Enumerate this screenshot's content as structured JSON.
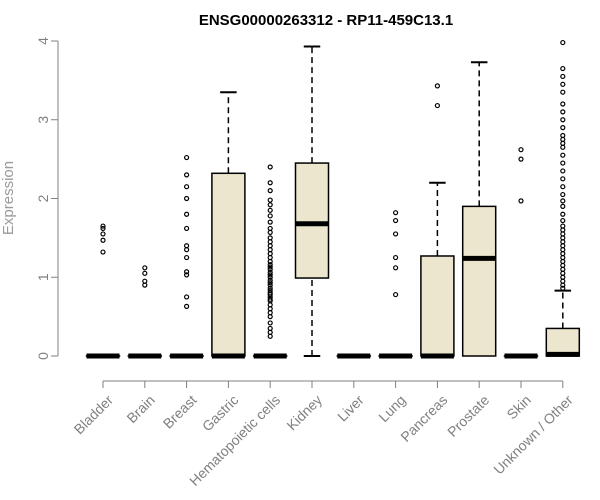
{
  "chart_data": {
    "type": "box",
    "title": "ENSG00000263312 - RP11-459C13.1",
    "ylabel": "Expression",
    "xlabel": "",
    "ylim": [
      0,
      4
    ],
    "yticks": [
      0,
      1,
      2,
      3,
      4
    ],
    "grid": false,
    "box_fill": "#ede6cf",
    "box_stroke": "#000000",
    "axis_color": "#808080",
    "categories": [
      "Bladder",
      "Brain",
      "Breast",
      "Gastric",
      "Hematopoietic cells",
      "Kidney",
      "Liver",
      "Lung",
      "Pancreas",
      "Prostate",
      "Skin",
      "Unknown / Other"
    ],
    "boxes": [
      {
        "min": 0,
        "q1": 0,
        "median": 0,
        "q3": 0,
        "max": 0,
        "outliers": [
          1.32,
          1.47,
          1.55,
          1.62,
          1.65
        ]
      },
      {
        "min": 0,
        "q1": 0,
        "median": 0,
        "q3": 0,
        "max": 0,
        "outliers": [
          0.9,
          0.95,
          1.05,
          1.12
        ]
      },
      {
        "min": 0,
        "q1": 0,
        "median": 0,
        "q3": 0,
        "max": 0,
        "outliers": [
          0.63,
          0.75,
          1.03,
          1.07,
          1.25,
          1.35,
          1.4,
          1.62,
          1.8,
          2.0,
          2.15,
          2.3,
          2.52
        ]
      },
      {
        "min": 0,
        "q1": 0,
        "median": 0,
        "q3": 2.32,
        "max": 3.35,
        "outliers": []
      },
      {
        "min": 0,
        "q1": 0,
        "median": 0,
        "q3": 0,
        "max": 0,
        "outliers": [
          0.25,
          0.3,
          0.35,
          0.42,
          0.5,
          0.55,
          0.6,
          0.65,
          0.7,
          0.72,
          0.75,
          0.78,
          0.8,
          0.83,
          0.86,
          0.9,
          0.93,
          0.96,
          1.0,
          1.03,
          1.06,
          1.1,
          1.13,
          1.16,
          1.2,
          1.25,
          1.3,
          1.35,
          1.4,
          1.45,
          1.5,
          1.57,
          1.62,
          1.7,
          1.78,
          1.85,
          1.92,
          1.98,
          2.1,
          2.2,
          2.4
        ]
      },
      {
        "min": 0,
        "q1": 0.99,
        "median": 1.68,
        "q3": 2.45,
        "max": 3.93,
        "outliers": []
      },
      {
        "min": 0,
        "q1": 0,
        "median": 0,
        "q3": 0,
        "max": 0,
        "outliers": []
      },
      {
        "min": 0,
        "q1": 0,
        "median": 0,
        "q3": 0,
        "max": 0,
        "outliers": [
          0.78,
          1.12,
          1.25,
          1.55,
          1.72,
          1.82
        ]
      },
      {
        "min": 0,
        "q1": 0,
        "median": 0,
        "q3": 1.27,
        "max": 2.2,
        "outliers": [
          3.18,
          3.43
        ]
      },
      {
        "min": 0,
        "q1": 0,
        "median": 1.24,
        "q3": 1.9,
        "max": 3.73,
        "outliers": []
      },
      {
        "min": 0,
        "q1": 0,
        "median": 0,
        "q3": 0,
        "max": 0,
        "outliers": [
          1.97,
          2.5,
          2.62
        ]
      },
      {
        "min": 0,
        "q1": 0,
        "median": 0.02,
        "q3": 0.35,
        "max": 0.83,
        "outliers": [
          0.86,
          0.9,
          0.95,
          1.0,
          1.05,
          1.1,
          1.15,
          1.2,
          1.25,
          1.3,
          1.35,
          1.4,
          1.45,
          1.5,
          1.55,
          1.6,
          1.65,
          1.72,
          1.8,
          1.9,
          1.97,
          2.05,
          2.15,
          2.25,
          2.35,
          2.45,
          2.55,
          2.65,
          2.7,
          2.75,
          2.8,
          2.9,
          3.0,
          3.1,
          3.2,
          3.35,
          3.45,
          3.55,
          3.65,
          3.98
        ]
      }
    ]
  }
}
